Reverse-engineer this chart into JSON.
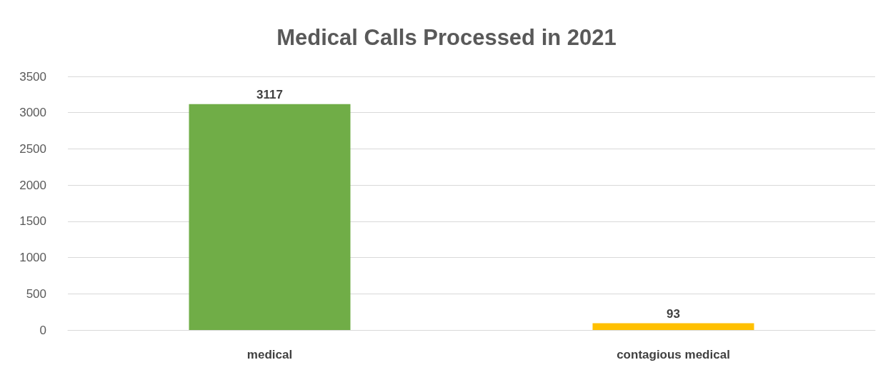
{
  "chart_data": {
    "type": "bar",
    "title": "Medical Calls Processed in 2021",
    "categories": [
      "medical",
      "contagious medical"
    ],
    "values": [
      3117,
      93
    ],
    "colors": [
      "#70ad47",
      "#ffc000"
    ],
    "ylim": [
      0,
      3500
    ],
    "yticks": [
      0,
      500,
      1000,
      1500,
      2000,
      2500,
      3000,
      3500
    ],
    "grid": "y",
    "data_labels": true
  }
}
